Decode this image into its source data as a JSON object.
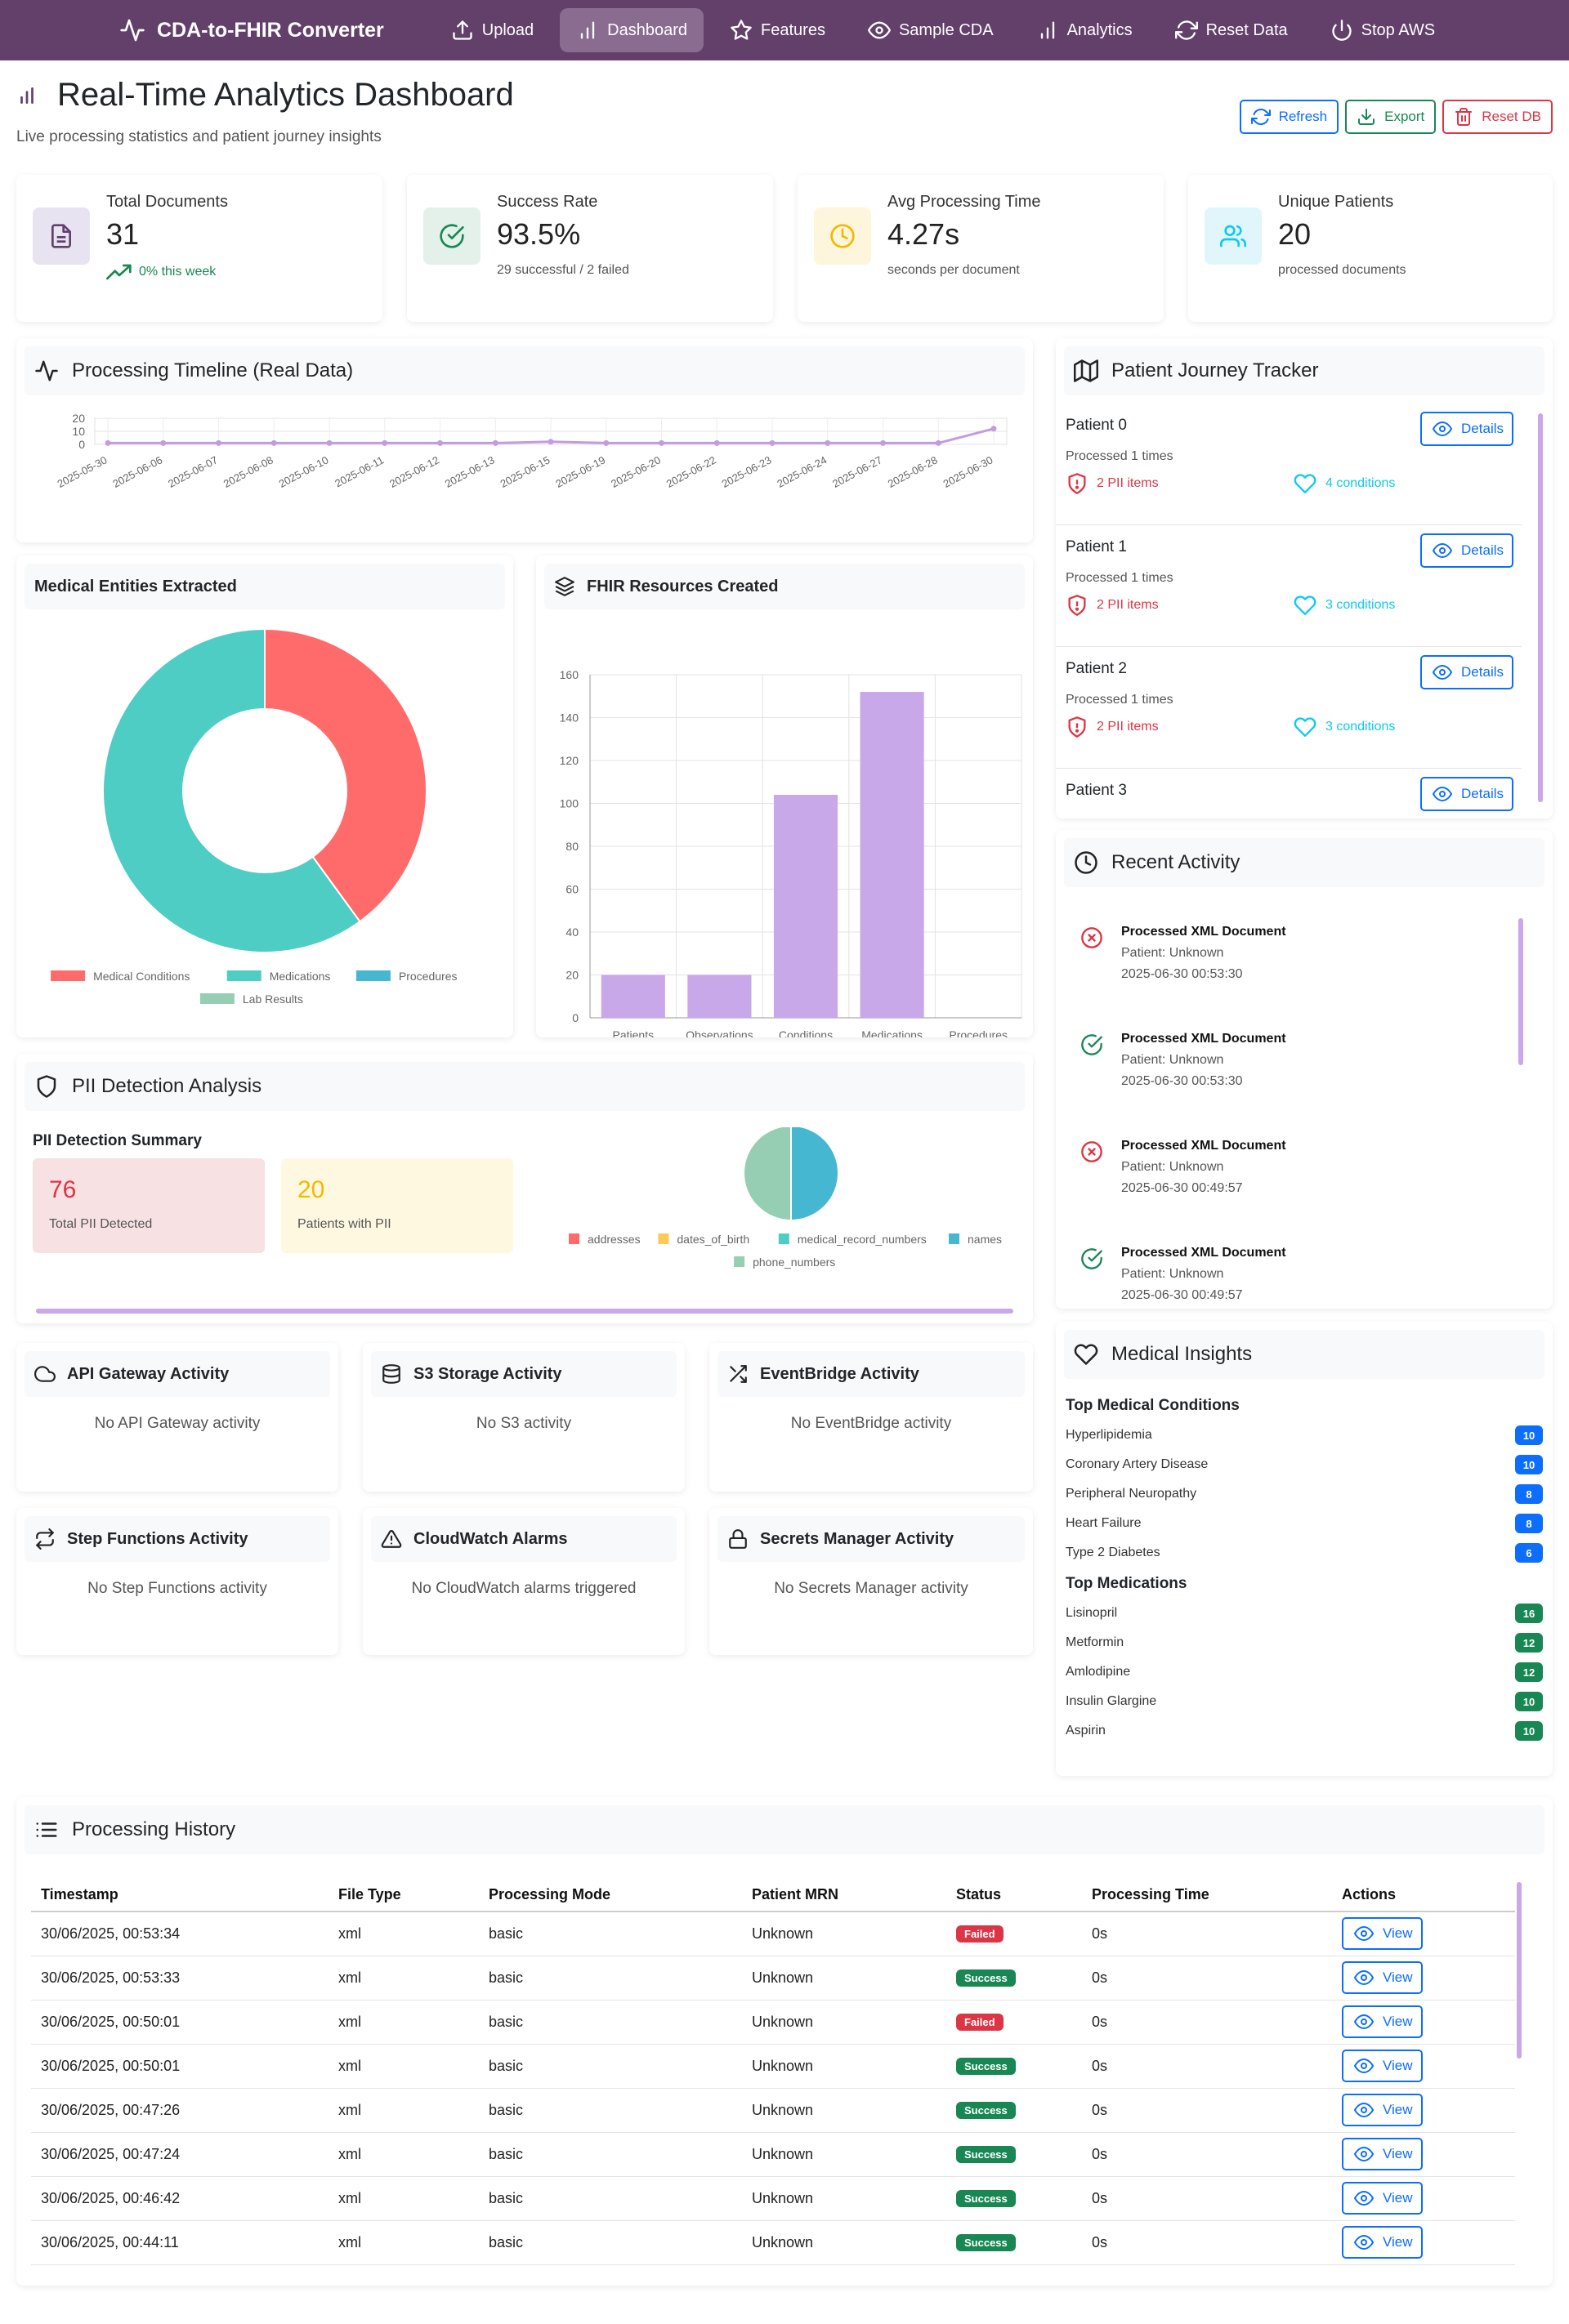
{
  "nav": {
    "brand": "CDA-to-FHIR Converter",
    "items": [
      {
        "label": "Upload",
        "icon": "upload-icon"
      },
      {
        "label": "Dashboard",
        "icon": "bar-chart-icon"
      },
      {
        "label": "Features",
        "icon": "star-icon"
      },
      {
        "label": "Sample CDA",
        "icon": "eye-icon"
      },
      {
        "label": "Analytics",
        "icon": "bar-chart-icon"
      },
      {
        "label": "Reset Data",
        "icon": "refresh-icon"
      },
      {
        "label": "Stop AWS",
        "icon": "power-icon"
      }
    ],
    "active": "Dashboard"
  },
  "header": {
    "title": "Real-Time Analytics Dashboard",
    "subtitle": "Live processing statistics and patient journey insights",
    "refresh": "Refresh",
    "export": "Export",
    "reset_db": "Reset DB"
  },
  "stats": [
    {
      "label": "Total Documents",
      "value": "31",
      "sub": "0% this week",
      "color": "#e7e3f1"
    },
    {
      "label": "Success Rate",
      "value": "93.5%",
      "sub": "29 successful / 2 failed",
      "color": "#e3f1ea"
    },
    {
      "label": "Avg Processing Time",
      "value": "4.27s",
      "sub": "seconds per document",
      "color": "#fdf6dd"
    },
    {
      "label": "Unique Patients",
      "value": "20",
      "sub": "processed documents",
      "color": "#e1f6fb"
    }
  ],
  "timeline": {
    "title": "Processing Timeline (Real Data)",
    "chart_data": {
      "type": "line",
      "x": [
        "2025-05-30",
        "2025-06-06",
        "2025-06-07",
        "2025-06-08",
        "2025-06-10",
        "2025-06-11",
        "2025-06-12",
        "2025-06-13",
        "2025-06-15",
        "2025-06-19",
        "2025-06-20",
        "2025-06-22",
        "2025-06-23",
        "2025-06-24",
        "2025-06-27",
        "2025-06-28",
        "2025-06-30"
      ],
      "values": [
        1,
        1,
        1,
        1,
        1,
        1,
        1,
        1,
        2,
        1,
        1,
        1,
        1,
        1,
        1,
        1,
        12
      ],
      "yticks": [
        0,
        10,
        20
      ],
      "ylim": [
        0,
        20
      ],
      "color": "#c39be0"
    }
  },
  "entities": {
    "title": "Medical Entities Extracted",
    "chart_data": {
      "type": "pie",
      "categories": [
        "Medical Conditions",
        "Medications",
        "Procedures",
        "Lab Results"
      ],
      "values": [
        40,
        60,
        0,
        0
      ],
      "colors": [
        "#ff6b6b",
        "#4ecdc4",
        "#45b7d1",
        "#96ceb4"
      ]
    }
  },
  "fhir": {
    "title": "FHIR Resources Created",
    "chart_data": {
      "type": "bar",
      "categories": [
        "Patients",
        "Observations",
        "Conditions",
        "Medications",
        "Procedures"
      ],
      "values": [
        20,
        20,
        104,
        152,
        0
      ],
      "ylim": [
        0,
        160
      ],
      "yticks": [
        0,
        20,
        40,
        60,
        80,
        100,
        120,
        140,
        160
      ],
      "color": "#c8a8e9"
    }
  },
  "journey": {
    "title": "Patient Journey Tracker",
    "details_label": "Details",
    "patients": [
      {
        "name": "Patient 0",
        "processed": "Processed 1 times",
        "pii": "2 PII items",
        "conditions": "4 conditions"
      },
      {
        "name": "Patient 1",
        "processed": "Processed 1 times",
        "pii": "2 PII items",
        "conditions": "3 conditions"
      },
      {
        "name": "Patient 2",
        "processed": "Processed 1 times",
        "pii": "2 PII items",
        "conditions": "3 conditions"
      },
      {
        "name": "Patient 3",
        "processed": "",
        "pii": "",
        "conditions": ""
      }
    ]
  },
  "activity": {
    "title": "Recent Activity",
    "items": [
      {
        "title": "Processed XML Document",
        "patient": "Patient: Unknown",
        "time": "2025-06-30 00:53:30",
        "status": "failed"
      },
      {
        "title": "Processed XML Document",
        "patient": "Patient: Unknown",
        "time": "2025-06-30 00:53:30",
        "status": "success"
      },
      {
        "title": "Processed XML Document",
        "patient": "Patient: Unknown",
        "time": "2025-06-30 00:49:57",
        "status": "failed"
      },
      {
        "title": "Processed XML Document",
        "patient": "Patient: Unknown",
        "time": "2025-06-30 00:49:57",
        "status": "success"
      }
    ]
  },
  "insights": {
    "title": "Medical Insights",
    "conditions_heading": "Top Medical Conditions",
    "conditions": [
      {
        "name": "Hyperlipidemia",
        "count": "10"
      },
      {
        "name": "Coronary Artery Disease",
        "count": "10"
      },
      {
        "name": "Peripheral Neuropathy",
        "count": "8"
      },
      {
        "name": "Heart Failure",
        "count": "8"
      },
      {
        "name": "Type 2 Diabetes",
        "count": "6"
      }
    ],
    "medications_heading": "Top Medications",
    "medications": [
      {
        "name": "Lisinopril",
        "count": "16"
      },
      {
        "name": "Metformin",
        "count": "12"
      },
      {
        "name": "Amlodipine",
        "count": "12"
      },
      {
        "name": "Insulin Glargine",
        "count": "10"
      },
      {
        "name": "Aspirin",
        "count": "10"
      }
    ]
  },
  "pii": {
    "title": "PII Detection Analysis",
    "summary_heading": "PII Detection Summary",
    "total": {
      "value": "76",
      "label": "Total PII Detected"
    },
    "patients": {
      "value": "20",
      "label": "Patients with PII"
    },
    "chart_data": {
      "type": "pie",
      "categories": [
        "addresses",
        "dates_of_birth",
        "medical_record_numbers",
        "names",
        "phone_numbers"
      ],
      "values": [
        0,
        0,
        0,
        50,
        50
      ],
      "colors": [
        "#ff6b6b",
        "#feca57",
        "#4ecdc4",
        "#45b7d1",
        "#96ceb4"
      ]
    }
  },
  "aws": [
    {
      "title": "API Gateway Activity",
      "empty": "No API Gateway activity",
      "icon": "cloud-icon"
    },
    {
      "title": "S3 Storage Activity",
      "empty": "No S3 activity",
      "icon": "database-icon"
    },
    {
      "title": "EventBridge Activity",
      "empty": "No EventBridge activity",
      "icon": "shuffle-icon"
    },
    {
      "title": "Step Functions Activity",
      "empty": "No Step Functions activity",
      "icon": "repeat-icon"
    },
    {
      "title": "CloudWatch Alarms",
      "empty": "No CloudWatch alarms triggered",
      "icon": "alert-triangle-icon"
    },
    {
      "title": "Secrets Manager Activity",
      "empty": "No Secrets Manager activity",
      "icon": "lock-icon"
    }
  ],
  "history": {
    "title": "Processing History",
    "columns": [
      "Timestamp",
      "File Type",
      "Processing Mode",
      "Patient MRN",
      "Status",
      "Processing Time",
      "Actions"
    ],
    "view_label": "View",
    "rows": [
      {
        "timestamp": "30/06/2025, 00:53:34",
        "type": "xml",
        "mode": "basic",
        "mrn": "Unknown",
        "status": "Failed",
        "time": "0s"
      },
      {
        "timestamp": "30/06/2025, 00:53:33",
        "type": "xml",
        "mode": "basic",
        "mrn": "Unknown",
        "status": "Success",
        "time": "0s"
      },
      {
        "timestamp": "30/06/2025, 00:50:01",
        "type": "xml",
        "mode": "basic",
        "mrn": "Unknown",
        "status": "Failed",
        "time": "0s"
      },
      {
        "timestamp": "30/06/2025, 00:50:01",
        "type": "xml",
        "mode": "basic",
        "mrn": "Unknown",
        "status": "Success",
        "time": "0s"
      },
      {
        "timestamp": "30/06/2025, 00:47:26",
        "type": "xml",
        "mode": "basic",
        "mrn": "Unknown",
        "status": "Success",
        "time": "0s"
      },
      {
        "timestamp": "30/06/2025, 00:47:24",
        "type": "xml",
        "mode": "basic",
        "mrn": "Unknown",
        "status": "Success",
        "time": "0s"
      },
      {
        "timestamp": "30/06/2025, 00:46:42",
        "type": "xml",
        "mode": "basic",
        "mrn": "Unknown",
        "status": "Success",
        "time": "0s"
      },
      {
        "timestamp": "30/06/2025, 00:44:11",
        "type": "xml",
        "mode": "basic",
        "mrn": "Unknown",
        "status": "Success",
        "time": "0s"
      }
    ]
  }
}
